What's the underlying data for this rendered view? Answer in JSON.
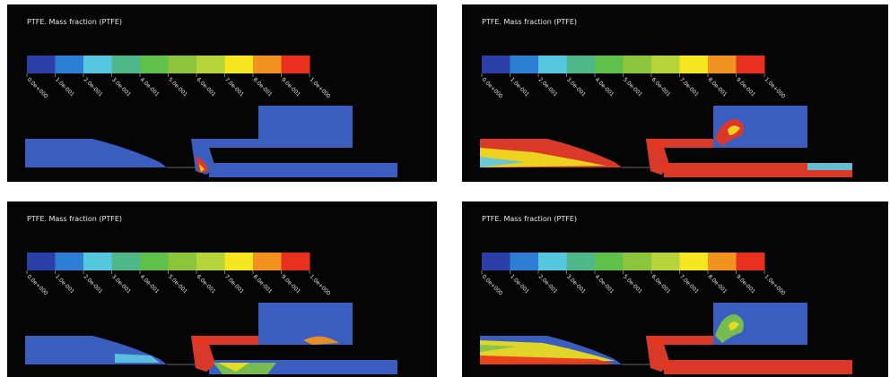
{
  "panels": [
    {
      "title": "PTFE. Mass fraction (PTFE)"
    },
    {
      "title": "PTFE. Mass fraction (PTFE)"
    },
    {
      "title": "PTFE. Mass fraction (PTFE)"
    },
    {
      "title": "PTFE. Mass fraction (PTFE)"
    }
  ],
  "colorbar": {
    "colors": [
      "#2b3fa8",
      "#2d7fd6",
      "#55c8e0",
      "#4fb88a",
      "#5fc04a",
      "#8cc43c",
      "#b7d33a",
      "#f5e61f",
      "#f3931f",
      "#e8301e"
    ],
    "labels": [
      "0.0e+000",
      "1.0e-001",
      "2.0e-001",
      "3.0e-001",
      "4.0e-001",
      "5.0e-001",
      "6.0e-001",
      "7.0e-001",
      "8.0e-001",
      "9.0e-001",
      "1.0e+000"
    ]
  }
}
